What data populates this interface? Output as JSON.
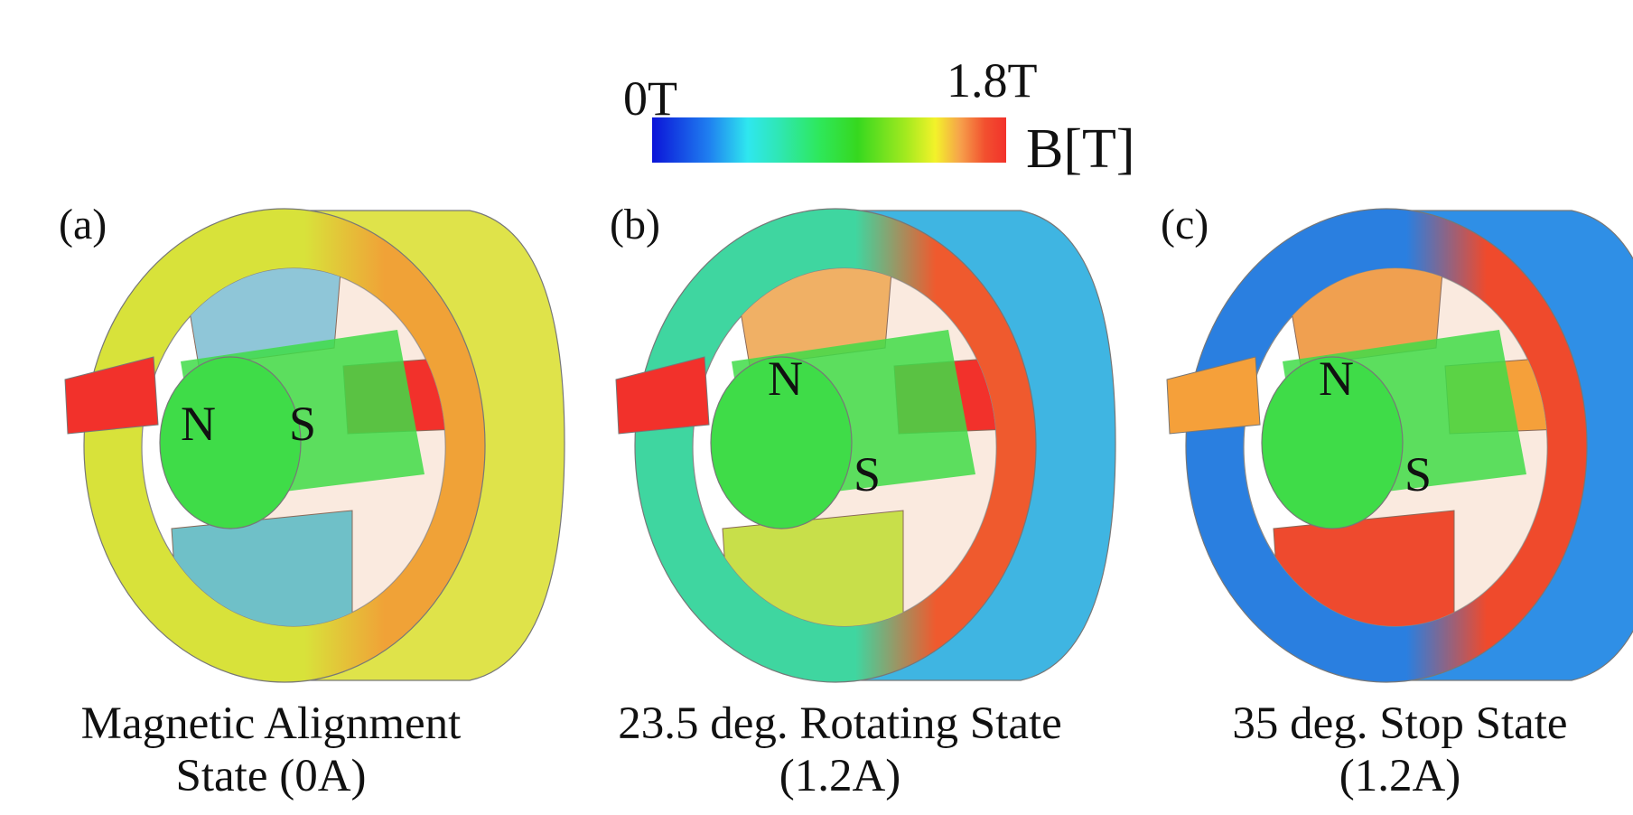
{
  "colorbar": {
    "min_label": "0T",
    "max_label": "1.8T",
    "unit_label": "B[T]",
    "gradient_colors": [
      "#0b14d8",
      "#1f7ff0",
      "#2fe7ef",
      "#2ee85c",
      "#36d81f",
      "#a6ea1f",
      "#f3f22a",
      "#f6a14b",
      "#f2322b"
    ]
  },
  "panels": [
    {
      "label": "(a)",
      "pole_n": "N",
      "pole_s": "S",
      "caption_line1": "Magnetic Alignment",
      "caption_line2": "State (0A)",
      "colors": {
        "yoke_left": "#d8e23a",
        "yoke_right": "#f0a237",
        "outer_side": "#dfe34a",
        "pole_left": "#f2312b",
        "pole_right": "#f2312b",
        "pole_top": "#8fc6d8",
        "pole_bottom": "#6fc0c8",
        "rotor": "#3fdc48"
      }
    },
    {
      "label": "(b)",
      "pole_n": "N",
      "pole_s": "S",
      "caption_line1": "23.5 deg. Rotating State",
      "caption_line2": "(1.2A)",
      "colors": {
        "yoke_left": "#3fd6a0",
        "yoke_right": "#ef5a2e",
        "outer_side": "#3fb5e2",
        "pole_left": "#f2312b",
        "pole_right": "#f2312b",
        "pole_top": "#f0b065",
        "pole_bottom": "#c8df4a",
        "rotor": "#3fdc48"
      }
    },
    {
      "label": "(c)",
      "pole_n": "N",
      "pole_s": "S",
      "caption_line1": "35 deg. Stop State",
      "caption_line2": "(1.2A)",
      "colors": {
        "yoke_left": "#2a7fe0",
        "yoke_right": "#ef4a2c",
        "outer_side": "#2f8fe6",
        "pole_left": "#f5a03a",
        "pole_right": "#f5a03a",
        "pole_top": "#f0a050",
        "pole_bottom": "#ee4a2e",
        "rotor": "#3fdc48"
      }
    }
  ]
}
